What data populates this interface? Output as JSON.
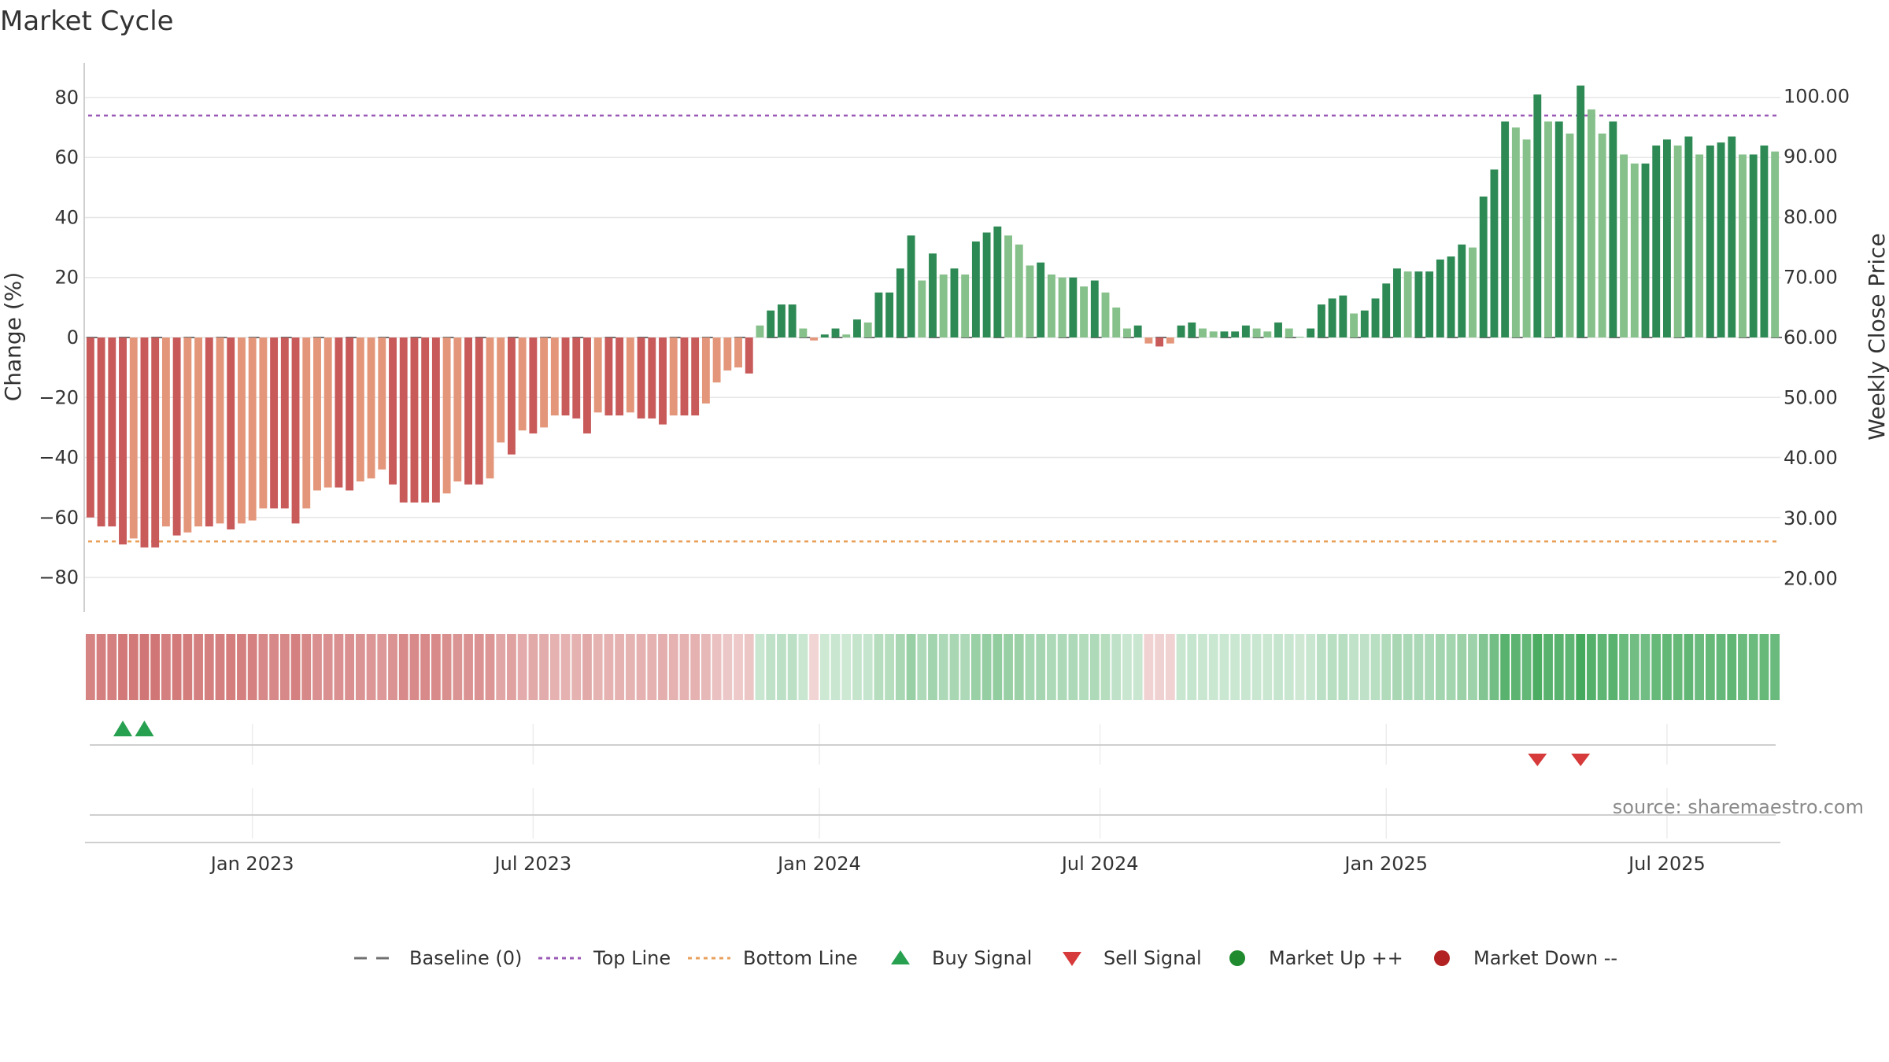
{
  "chart_data": {
    "type": "bar",
    "title": "Market Cycle",
    "ylabel": "Change (%)",
    "y2label": "Weekly Close Price",
    "ylim": [
      -92,
      92
    ],
    "y2lim": [
      14.2,
      105.8
    ],
    "yticks": [
      80,
      60,
      40,
      20,
      0,
      -20,
      -40,
      -60,
      -80
    ],
    "y2ticks": [
      "100.00",
      "90.00",
      "80.00",
      "70.00",
      "60.00",
      "50.00",
      "40.00",
      "30.00",
      "20.00"
    ],
    "x_tick_labels": [
      {
        "label": "Jan 2023",
        "week": 15
      },
      {
        "label": "Jul 2023",
        "week": 41
      },
      {
        "label": "Jan 2024",
        "week": 67.5
      },
      {
        "label": "Jul 2024",
        "week": 93.5
      },
      {
        "label": "Jan 2025",
        "week": 120
      },
      {
        "label": "Jul 2025",
        "week": 146
      }
    ],
    "top_line": 74,
    "bottom_line": -68,
    "grid": true,
    "legend_position": "bottom-center",
    "values": [
      -60,
      -63,
      -63,
      -69,
      -67,
      -70,
      -70,
      -63,
      -66,
      -65,
      -63,
      -63,
      -62,
      -64,
      -62,
      -61,
      -57,
      -57,
      -57,
      -62,
      -57,
      -51,
      -50,
      -50,
      -51,
      -48,
      -47,
      -44,
      -49,
      -55,
      -55,
      -55,
      -55,
      -52,
      -48,
      -49,
      -49,
      -47,
      -35,
      -39,
      -31,
      -32,
      -30,
      -26,
      -26,
      -27,
      -32,
      -25,
      -26,
      -26,
      -25,
      -27,
      -27,
      -29,
      -26,
      -26,
      -26,
      -22,
      -15,
      -11,
      -10,
      -12,
      4,
      9,
      11,
      11,
      3,
      -1,
      1,
      3,
      1,
      6,
      5,
      15,
      15,
      23,
      34,
      19,
      28,
      21,
      23,
      21,
      32,
      35,
      37,
      34,
      31,
      24,
      25,
      21,
      20,
      20,
      17,
      19,
      15,
      10,
      3,
      4,
      -2,
      -3,
      -2,
      4,
      5,
      3,
      2,
      2,
      2,
      4,
      3,
      2,
      5,
      3,
      0,
      3,
      11,
      13,
      14,
      8,
      9,
      13,
      18,
      23,
      22,
      22,
      22,
      26,
      27,
      31,
      30,
      47,
      56,
      72,
      70,
      66,
      81,
      72,
      72,
      68,
      84,
      76,
      68,
      72,
      61,
      58,
      58,
      64,
      66,
      64,
      67,
      61,
      64,
      65,
      67,
      61,
      61,
      64,
      62
    ],
    "legend": [
      {
        "key": "baseline",
        "label": "Baseline (0)",
        "color": "#707070"
      },
      {
        "key": "top",
        "label": "Top Line",
        "color": "#9b59b6"
      },
      {
        "key": "bottom",
        "label": "Bottom Line",
        "color": "#e8a05a"
      },
      {
        "key": "buy",
        "label": "Buy Signal",
        "color": "#27a050"
      },
      {
        "key": "sell",
        "label": "Sell Signal",
        "color": "#d63a3a"
      },
      {
        "key": "up",
        "label": "Market Up ++",
        "color": "#1f8a2e"
      },
      {
        "key": "down",
        "label": "Market Down --",
        "color": "#b22222"
      }
    ],
    "buy_signals": [
      {
        "week": 3,
        "value": 0
      },
      {
        "week": 5,
        "value": 0
      }
    ],
    "sell_signals": [
      {
        "week": 134,
        "value": 0
      },
      {
        "week": 138,
        "value": 0
      }
    ],
    "colors": {
      "neg_strong": "#c85a5a",
      "neg_light": "#e3967a",
      "pos_strong": "#2e8a54",
      "pos_light": "#86c08a"
    },
    "source": "source: sharemaestro.com"
  }
}
